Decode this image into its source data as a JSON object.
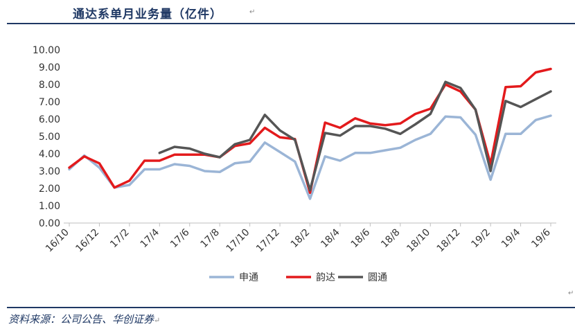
{
  "header": {
    "title": "通达系单月业务量（亿件）",
    "mark": "↵"
  },
  "footer": {
    "source": "资料来源：公司公告、华创证券",
    "mark": "↵"
  },
  "chart_data": {
    "type": "line",
    "title": "通达系单月业务量（亿件）",
    "xlabel": "",
    "ylabel": "",
    "ylim": [
      0,
      10
    ],
    "yticks": [
      "0.00",
      "1.00",
      "2.00",
      "3.00",
      "4.00",
      "5.00",
      "6.00",
      "7.00",
      "8.00",
      "9.00",
      "10.00"
    ],
    "x": [
      "16/10",
      "16/11",
      "16/12",
      "17/1",
      "17/2",
      "17/3",
      "17/4",
      "17/5",
      "17/6",
      "17/7",
      "17/8",
      "17/9",
      "17/10",
      "17/11",
      "17/12",
      "18/1",
      "18/2",
      "18/3",
      "18/4",
      "18/5",
      "18/6",
      "18/7",
      "18/8",
      "18/9",
      "18/10",
      "18/11",
      "18/12",
      "19/1",
      "19/2",
      "19/3",
      "19/4",
      "19/5",
      "19/6"
    ],
    "xtick_labels": [
      "16/10",
      "16/12",
      "17/2",
      "17/4",
      "17/6",
      "17/8",
      "17/10",
      "17/12",
      "18/2",
      "18/4",
      "18/6",
      "18/8",
      "18/10",
      "18/12",
      "19/2",
      "19/4",
      "19/6"
    ],
    "grid": false,
    "legend_position": "bottom",
    "series": [
      {
        "name": "申通",
        "color": "#9bb5d6",
        "values": [
          3.1,
          3.9,
          3.2,
          2.05,
          2.2,
          3.1,
          3.1,
          3.4,
          3.3,
          3.0,
          2.95,
          3.45,
          3.55,
          4.65,
          4.1,
          3.55,
          1.4,
          3.85,
          3.6,
          4.05,
          4.05,
          4.2,
          4.35,
          4.8,
          5.15,
          6.15,
          6.1,
          5.1,
          2.5,
          5.15,
          5.15,
          5.95,
          6.2
        ]
      },
      {
        "name": "韵达",
        "color": "#e31a1c",
        "values": [
          3.2,
          3.85,
          3.45,
          2.05,
          2.45,
          3.6,
          3.6,
          3.95,
          3.95,
          3.95,
          3.8,
          4.45,
          4.6,
          5.5,
          4.95,
          4.85,
          1.75,
          5.8,
          5.5,
          6.05,
          5.75,
          5.65,
          5.75,
          6.3,
          6.6,
          8.0,
          7.6,
          6.55,
          3.4,
          7.85,
          7.9,
          8.7,
          8.9
        ]
      },
      {
        "name": "圆通",
        "color": "#555555",
        "values": [
          null,
          null,
          null,
          null,
          null,
          null,
          4.05,
          4.4,
          4.3,
          4.0,
          3.8,
          4.55,
          4.8,
          6.25,
          5.35,
          4.8,
          1.9,
          5.2,
          5.05,
          5.6,
          5.6,
          5.45,
          5.15,
          5.7,
          6.3,
          8.15,
          7.8,
          6.55,
          3.0,
          7.05,
          6.7,
          7.15,
          7.6
        ]
      }
    ]
  }
}
